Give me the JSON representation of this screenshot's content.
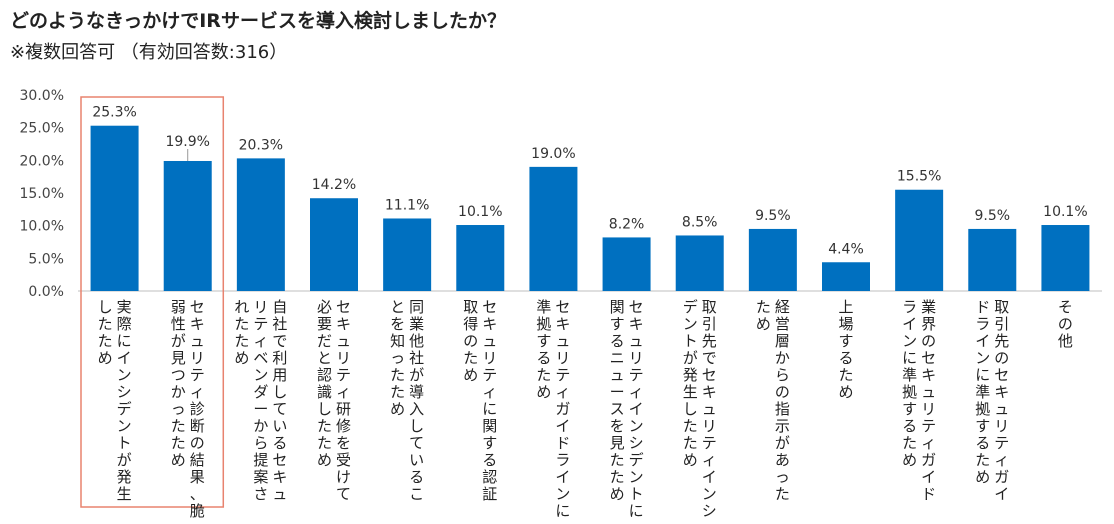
{
  "chart_data": {
    "type": "bar",
    "title": "どのようなきっかけでIRサービスを導入検討しましたか？",
    "subtitle": "※複数回答可 （有効回答数:316）",
    "ylim": [
      0,
      30
    ],
    "yticks": [
      "0.0%",
      "5.0%",
      "10.0%",
      "15.0%",
      "20.0%",
      "25.0%",
      "30.0%"
    ],
    "grid": false,
    "bar_color": "#0070C0",
    "highlight_color": "#E8836F",
    "highlighted_categories": [
      0,
      1
    ],
    "categories": [
      [
        "実際にインシデントが発生",
        "したため"
      ],
      [
        "セキュリティ診断の結果、脆",
        "弱性が見つかったため"
      ],
      [
        "自社で利用しているセキュ",
        "リティベンダーから提案さ",
        "れたため"
      ],
      [
        "セキュリティ研修を受けて",
        "必要だと認識したため"
      ],
      [
        "同業他社が導入しているこ",
        "とを知ったため"
      ],
      [
        "セキュリティに関する認証",
        "取得のため"
      ],
      [
        "セキュリティガイドラインに",
        "準拠するため"
      ],
      [
        "セキュリティインシデントに",
        "関するニュースを見たため"
      ],
      [
        "取引先でセキュリティインシ",
        "デントが発生したため"
      ],
      [
        "経営層からの指示があった",
        "ため"
      ],
      [
        "上場するため"
      ],
      [
        "業界のセキュリティガイド",
        "ラインに準拠するため"
      ],
      [
        "取引先のセキュリティガイ",
        "ドラインに準拠するため"
      ],
      [
        "その他"
      ]
    ],
    "values": [
      25.3,
      19.9,
      20.3,
      14.2,
      11.1,
      10.1,
      19.0,
      8.2,
      8.5,
      9.5,
      4.4,
      15.5,
      9.5,
      10.1
    ],
    "labels": [
      "25.3%",
      "19.9%",
      "20.3%",
      "14.2%",
      "11.1%",
      "10.1%",
      "19.0%",
      "8.2%",
      "8.5%",
      "9.5%",
      "4.4%",
      "15.5%",
      "9.5%",
      "10.1%"
    ]
  }
}
